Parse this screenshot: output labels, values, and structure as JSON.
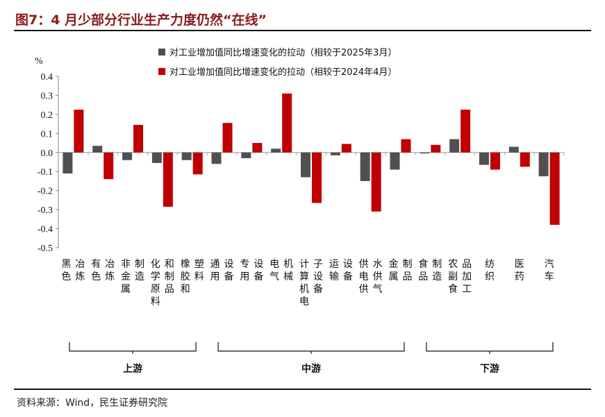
{
  "title": "图7：4 月少部分行业生产力度仍然“在线”",
  "source": "资料来源：Wind，民生证券研究院",
  "chart_data": {
    "type": "bar",
    "ylabel": "%",
    "ylim": [
      -0.5,
      0.4
    ],
    "yticks": [
      "0.4",
      "0.3",
      "0.2",
      "0.1",
      "0.0",
      "-0.1",
      "-0.2",
      "-0.3",
      "-0.4",
      "-0.5"
    ],
    "categories": [
      "黑色冶炼",
      "有色冶炼",
      "非金属制造",
      "化学原料和制品",
      "橡胶和塑料",
      "通用设备",
      "专用设备",
      "电气机械",
      "计算机电子设备",
      "运输设备",
      "供电供水供气",
      "金属制品",
      "食品制造",
      "农副食品加工",
      "纺织",
      "医药",
      "汽车"
    ],
    "series": [
      {
        "name": "对工业增加值同比增速变化的拉动（相较于2025年3月）",
        "color": "#505050",
        "values": [
          -0.11,
          0.035,
          -0.04,
          -0.055,
          -0.04,
          -0.06,
          -0.03,
          0.02,
          -0.13,
          -0.015,
          -0.15,
          -0.09,
          -0.005,
          0.07,
          -0.065,
          0.03,
          -0.125
        ]
      },
      {
        "name": "对工业增加值同比增速变化的拉动（相较于2024年4月）",
        "color": "#c00000",
        "values": [
          0.225,
          -0.14,
          0.145,
          -0.285,
          -0.115,
          0.155,
          0.05,
          0.31,
          -0.265,
          0.045,
          -0.31,
          0.07,
          0.04,
          0.225,
          -0.09,
          -0.075,
          -0.38
        ]
      }
    ],
    "groups": [
      {
        "label": "上游",
        "from": 0,
        "to": 4
      },
      {
        "label": "中游",
        "from": 5,
        "to": 11
      },
      {
        "label": "下游",
        "from": 12,
        "to": 16
      }
    ],
    "grid": false,
    "legend": "top-center"
  }
}
